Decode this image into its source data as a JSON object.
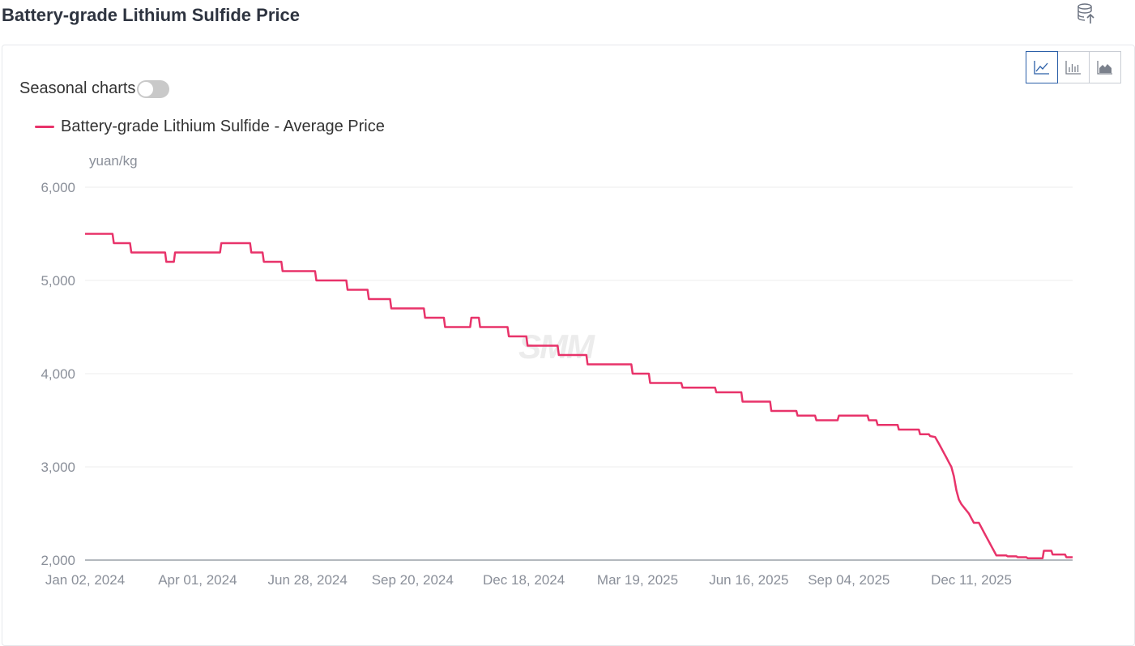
{
  "page": {
    "title": "Battery-grade Lithium Sulfide Price",
    "export_icon": "database-export-icon"
  },
  "controls": {
    "seasonal_label": "Seasonal charts",
    "seasonal_on": false,
    "chart_types": [
      {
        "name": "line-chart-icon",
        "active": true
      },
      {
        "name": "bar-chart-icon",
        "active": false
      },
      {
        "name": "area-chart-icon",
        "active": false
      }
    ]
  },
  "watermark": "SMM",
  "colors": {
    "series": "#e8336a",
    "grid": "#ececec",
    "axis": "#8a8f99"
  },
  "chart_data": {
    "type": "line",
    "title": "",
    "unit": "yuan/kg",
    "ylim": [
      2000,
      6000
    ],
    "yticks": [
      2000,
      3000,
      4000,
      5000,
      6000
    ],
    "ytick_labels": [
      "2,000",
      "3,000",
      "4,000",
      "5,000",
      "6,000"
    ],
    "xticks": [
      "Jan 02, 2024",
      "Apr 01, 2024",
      "Jun 28, 2024",
      "Sep 20, 2024",
      "Dec 18, 2024",
      "Mar 19, 2025",
      "Jun 16, 2025",
      "Sep 04, 2025",
      "Dec 11, 2025"
    ],
    "grid": true,
    "legend_position": "top-left",
    "series": [
      {
        "name": "Battery-grade Lithium Sulfide - Average Price",
        "color": "#e8336a",
        "points": [
          [
            "2024-01-02",
            5500
          ],
          [
            "2024-01-24",
            5500
          ],
          [
            "2024-01-25",
            5400
          ],
          [
            "2024-02-07",
            5400
          ],
          [
            "2024-02-08",
            5300
          ],
          [
            "2024-03-06",
            5300
          ],
          [
            "2024-03-07",
            5200
          ],
          [
            "2024-03-13",
            5200
          ],
          [
            "2024-03-14",
            5300
          ],
          [
            "2024-04-19",
            5300
          ],
          [
            "2024-04-20",
            5400
          ],
          [
            "2024-05-13",
            5400
          ],
          [
            "2024-05-14",
            5300
          ],
          [
            "2024-05-23",
            5300
          ],
          [
            "2024-05-24",
            5200
          ],
          [
            "2024-06-07",
            5200
          ],
          [
            "2024-06-08",
            5100
          ],
          [
            "2024-07-04",
            5100
          ],
          [
            "2024-07-05",
            5000
          ],
          [
            "2024-07-29",
            5000
          ],
          [
            "2024-07-30",
            4900
          ],
          [
            "2024-08-15",
            4900
          ],
          [
            "2024-08-16",
            4800
          ],
          [
            "2024-09-02",
            4800
          ],
          [
            "2024-09-03",
            4700
          ],
          [
            "2024-09-29",
            4700
          ],
          [
            "2024-09-30",
            4600
          ],
          [
            "2024-10-15",
            4600
          ],
          [
            "2024-10-16",
            4500
          ],
          [
            "2024-11-05",
            4500
          ],
          [
            "2024-11-06",
            4600
          ],
          [
            "2024-11-12",
            4600
          ],
          [
            "2024-11-13",
            4500
          ],
          [
            "2024-12-05",
            4500
          ],
          [
            "2024-12-06",
            4400
          ],
          [
            "2024-12-20",
            4400
          ],
          [
            "2024-12-21",
            4300
          ],
          [
            "2025-01-14",
            4300
          ],
          [
            "2025-01-15",
            4200
          ],
          [
            "2025-02-06",
            4200
          ],
          [
            "2025-02-07",
            4100
          ],
          [
            "2025-03-14",
            4100
          ],
          [
            "2025-03-15",
            4000
          ],
          [
            "2025-03-28",
            4000
          ],
          [
            "2025-03-29",
            3900
          ],
          [
            "2025-04-23",
            3900
          ],
          [
            "2025-04-24",
            3850
          ],
          [
            "2025-05-20",
            3850
          ],
          [
            "2025-05-21",
            3800
          ],
          [
            "2025-06-10",
            3800
          ],
          [
            "2025-06-11",
            3700
          ],
          [
            "2025-07-03",
            3700
          ],
          [
            "2025-07-04",
            3600
          ],
          [
            "2025-07-24",
            3600
          ],
          [
            "2025-07-25",
            3550
          ],
          [
            "2025-08-08",
            3550
          ],
          [
            "2025-08-09",
            3500
          ],
          [
            "2025-08-26",
            3500
          ],
          [
            "2025-08-27",
            3550
          ],
          [
            "2025-09-19",
            3550
          ],
          [
            "2025-09-20",
            3500
          ],
          [
            "2025-09-26",
            3500
          ],
          [
            "2025-09-27",
            3450
          ],
          [
            "2025-10-13",
            3450
          ],
          [
            "2025-10-14",
            3400
          ],
          [
            "2025-10-30",
            3400
          ],
          [
            "2025-10-31",
            3350
          ],
          [
            "2025-11-07",
            3350
          ],
          [
            "2025-11-08",
            3330
          ],
          [
            "2025-11-12",
            3320
          ],
          [
            "2025-11-15",
            3250
          ],
          [
            "2025-11-17",
            3200
          ],
          [
            "2025-11-19",
            3150
          ],
          [
            "2025-11-21",
            3100
          ],
          [
            "2025-11-23",
            3050
          ],
          [
            "2025-11-25",
            3000
          ],
          [
            "2025-11-27",
            2900
          ],
          [
            "2025-11-29",
            2750
          ],
          [
            "2025-12-01",
            2650
          ],
          [
            "2025-12-03",
            2600
          ],
          [
            "2025-12-06",
            2550
          ],
          [
            "2025-12-09",
            2500
          ],
          [
            "2025-12-11",
            2450
          ],
          [
            "2025-12-13",
            2400
          ],
          [
            "2025-12-17",
            2400
          ],
          [
            "2025-12-19",
            2350
          ],
          [
            "2025-12-21",
            2300
          ],
          [
            "2025-12-23",
            2250
          ],
          [
            "2025-12-25",
            2200
          ],
          [
            "2025-12-27",
            2150
          ],
          [
            "2025-12-29",
            2100
          ],
          [
            "2025-12-31",
            2050
          ],
          [
            "2026-01-08",
            2050
          ],
          [
            "2026-01-09",
            2040
          ],
          [
            "2026-01-16",
            2040
          ],
          [
            "2026-01-17",
            2030
          ],
          [
            "2026-01-24",
            2030
          ],
          [
            "2026-01-25",
            2020
          ],
          [
            "2026-02-06",
            2020
          ],
          [
            "2026-02-07",
            2100
          ],
          [
            "2026-02-13",
            2100
          ],
          [
            "2026-02-14",
            2060
          ],
          [
            "2026-02-24",
            2060
          ],
          [
            "2026-02-25",
            2030
          ],
          [
            "2026-03-02",
            2030
          ]
        ]
      }
    ]
  }
}
